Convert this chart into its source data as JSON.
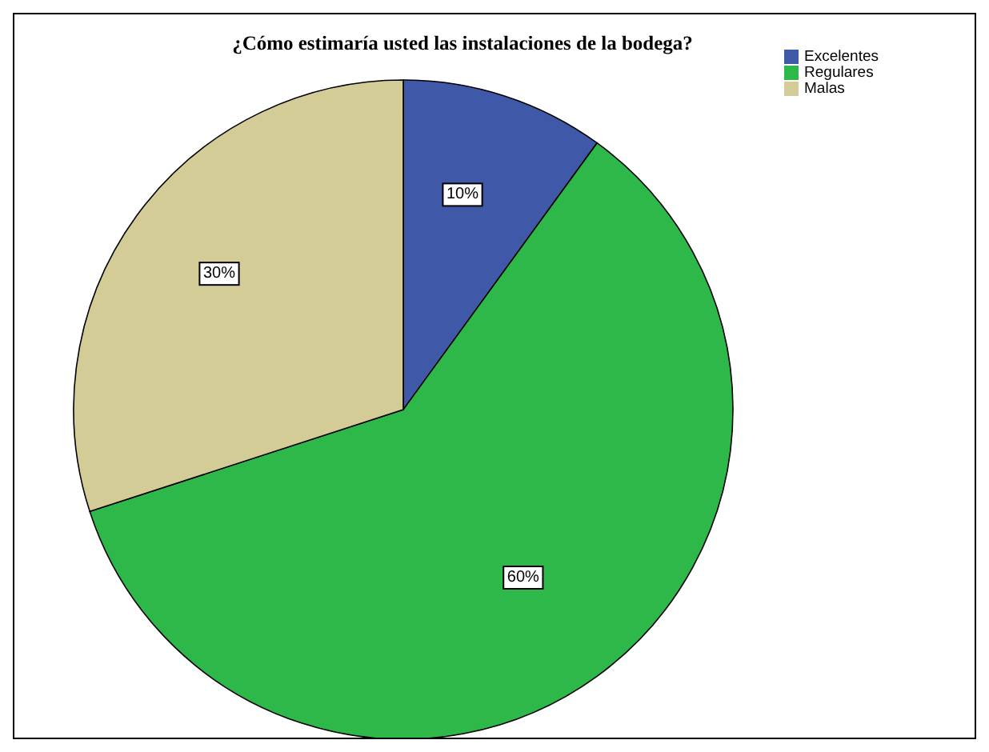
{
  "chart_data": {
    "type": "pie",
    "title": "¿Cómo estimaría usted las instalaciones de la bodega?",
    "categories": [
      "Excelentes",
      "Regulares",
      "Malas"
    ],
    "values": [
      10,
      60,
      30
    ],
    "colors": [
      "#3f58a8",
      "#2fb84a",
      "#d4cc96"
    ],
    "value_labels": [
      "10%",
      "60%",
      "30%"
    ],
    "legend": "top right"
  }
}
